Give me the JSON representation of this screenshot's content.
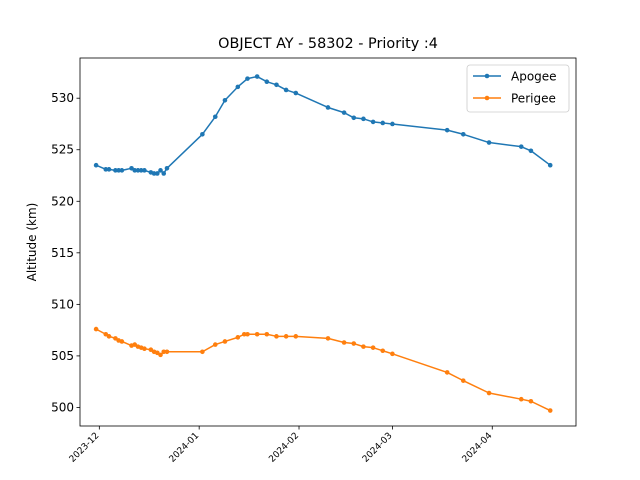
{
  "chart_data": {
    "type": "line",
    "title": "OBJECT AY - 58302 - Priority :4",
    "xlabel": "",
    "ylabel": "Altitude (km)",
    "x_axis_type": "date",
    "xlim": [
      "2023-11-25",
      "2024-04-27"
    ],
    "ylim": [
      498.2,
      533.9
    ],
    "grid": false,
    "legend_position": "top-right",
    "x_ticks": [
      {
        "date": "2023-12-01",
        "label": "2023-12"
      },
      {
        "date": "2024-01-01",
        "label": "2024-01"
      },
      {
        "date": "2024-02-01",
        "label": "2024-02"
      },
      {
        "date": "2024-03-01",
        "label": "2024-03"
      },
      {
        "date": "2024-04-01",
        "label": "2024-04"
      }
    ],
    "y_ticks": [
      500,
      505,
      510,
      515,
      520,
      525,
      530
    ],
    "series": [
      {
        "name": "Apogee",
        "color": "#1f77b4",
        "points": [
          [
            "2023-11-30",
            523.5
          ],
          [
            "2023-12-03",
            523.1
          ],
          [
            "2023-12-04",
            523.1
          ],
          [
            "2023-12-06",
            523.0
          ],
          [
            "2023-12-07",
            523.0
          ],
          [
            "2023-12-08",
            523.0
          ],
          [
            "2023-12-11",
            523.2
          ],
          [
            "2023-12-12",
            523.0
          ],
          [
            "2023-12-13",
            523.0
          ],
          [
            "2023-12-14",
            523.0
          ],
          [
            "2023-12-15",
            523.0
          ],
          [
            "2023-12-17",
            522.8
          ],
          [
            "2023-12-18",
            522.7
          ],
          [
            "2023-12-19",
            522.7
          ],
          [
            "2023-12-20",
            523.0
          ],
          [
            "2023-12-21",
            522.7
          ],
          [
            "2023-12-22",
            523.2
          ],
          [
            "2024-01-02",
            526.5
          ],
          [
            "2024-01-06",
            528.2
          ],
          [
            "2024-01-09",
            529.8
          ],
          [
            "2024-01-13",
            531.1
          ],
          [
            "2024-01-16",
            531.9
          ],
          [
            "2024-01-19",
            532.1
          ],
          [
            "2024-01-22",
            531.6
          ],
          [
            "2024-01-25",
            531.3
          ],
          [
            "2024-01-28",
            530.8
          ],
          [
            "2024-01-31",
            530.5
          ],
          [
            "2024-02-10",
            529.1
          ],
          [
            "2024-02-15",
            528.6
          ],
          [
            "2024-02-18",
            528.1
          ],
          [
            "2024-02-21",
            528.0
          ],
          [
            "2024-02-24",
            527.7
          ],
          [
            "2024-02-27",
            527.6
          ],
          [
            "2024-03-01",
            527.5
          ],
          [
            "2024-03-18",
            526.9
          ],
          [
            "2024-03-23",
            526.5
          ],
          [
            "2024-03-31",
            525.7
          ],
          [
            "2024-04-10",
            525.3
          ],
          [
            "2024-04-13",
            524.9
          ],
          [
            "2024-04-19",
            523.5
          ]
        ]
      },
      {
        "name": "Perigee",
        "color": "#ff7f0e",
        "points": [
          [
            "2023-11-30",
            507.6
          ],
          [
            "2023-12-03",
            507.1
          ],
          [
            "2023-12-04",
            506.9
          ],
          [
            "2023-12-06",
            506.7
          ],
          [
            "2023-12-07",
            506.5
          ],
          [
            "2023-12-08",
            506.4
          ],
          [
            "2023-12-11",
            506.0
          ],
          [
            "2023-12-12",
            506.1
          ],
          [
            "2023-12-13",
            505.9
          ],
          [
            "2023-12-14",
            505.8
          ],
          [
            "2023-12-15",
            505.7
          ],
          [
            "2023-12-17",
            505.6
          ],
          [
            "2023-12-18",
            505.4
          ],
          [
            "2023-12-19",
            505.3
          ],
          [
            "2023-12-20",
            505.1
          ],
          [
            "2023-12-21",
            505.4
          ],
          [
            "2023-12-22",
            505.4
          ],
          [
            "2024-01-02",
            505.4
          ],
          [
            "2024-01-06",
            506.1
          ],
          [
            "2024-01-09",
            506.4
          ],
          [
            "2024-01-13",
            506.8
          ],
          [
            "2024-01-15",
            507.1
          ],
          [
            "2024-01-16",
            507.1
          ],
          [
            "2024-01-19",
            507.1
          ],
          [
            "2024-01-22",
            507.1
          ],
          [
            "2024-01-25",
            506.9
          ],
          [
            "2024-01-28",
            506.9
          ],
          [
            "2024-01-31",
            506.9
          ],
          [
            "2024-02-10",
            506.7
          ],
          [
            "2024-02-15",
            506.3
          ],
          [
            "2024-02-18",
            506.2
          ],
          [
            "2024-02-21",
            505.9
          ],
          [
            "2024-02-24",
            505.8
          ],
          [
            "2024-02-27",
            505.5
          ],
          [
            "2024-03-01",
            505.2
          ],
          [
            "2024-03-18",
            503.4
          ],
          [
            "2024-03-23",
            502.6
          ],
          [
            "2024-03-31",
            501.4
          ],
          [
            "2024-04-10",
            500.8
          ],
          [
            "2024-04-13",
            500.6
          ],
          [
            "2024-04-19",
            499.7
          ]
        ]
      }
    ]
  }
}
